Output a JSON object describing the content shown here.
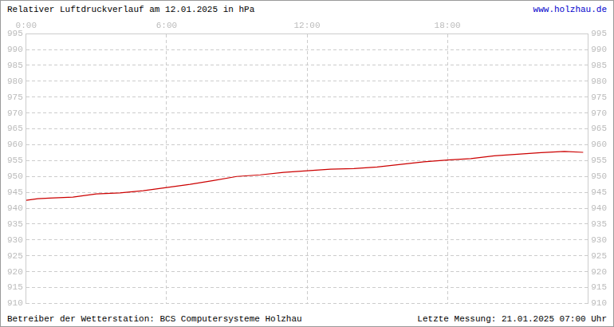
{
  "chart_data": {
    "type": "line",
    "title": "Relativer Luftdruckverlauf am 12.01.2025 in hPa",
    "annotations": [
      "www.holzhau.de",
      "Betreiber der Wetterstation: BCS Computersysteme Holzhau",
      "Letzte Messung: 21.01.2025 07:00 Uhr"
    ],
    "x": [
      0,
      0.5,
      1,
      2,
      3,
      4,
      5,
      6,
      7,
      8,
      9,
      10,
      11,
      12,
      13,
      14,
      15,
      16,
      17,
      18,
      19,
      20,
      21,
      22,
      23,
      23.8
    ],
    "values": [
      942.5,
      943,
      943.2,
      943.5,
      944.5,
      944.8,
      945.5,
      946.5,
      947.5,
      948.7,
      950,
      950.5,
      951.3,
      951.8,
      952.3,
      952.5,
      953,
      953.8,
      954.6,
      955.2,
      955.6,
      956.5,
      957,
      957.5,
      957.9,
      957.6
    ],
    "color": "#cc0000",
    "xlim": [
      0,
      24
    ],
    "xticks": [
      {
        "value": 0,
        "label": "0:00"
      },
      {
        "value": 6,
        "label": "6:00"
      },
      {
        "value": 12,
        "label": "12:00"
      },
      {
        "value": 18,
        "label": "18:00"
      }
    ],
    "ylim": [
      910,
      995
    ],
    "yticks": [
      910,
      915,
      920,
      925,
      930,
      935,
      940,
      945,
      950,
      955,
      960,
      965,
      970,
      975,
      980,
      985,
      990,
      995
    ],
    "y2lim": [
      910,
      995
    ],
    "y2ticks": [
      910,
      915,
      920,
      925,
      930,
      935,
      940,
      945,
      950,
      955,
      960,
      965,
      970,
      975,
      980,
      985,
      990,
      995
    ],
    "grid": true
  }
}
